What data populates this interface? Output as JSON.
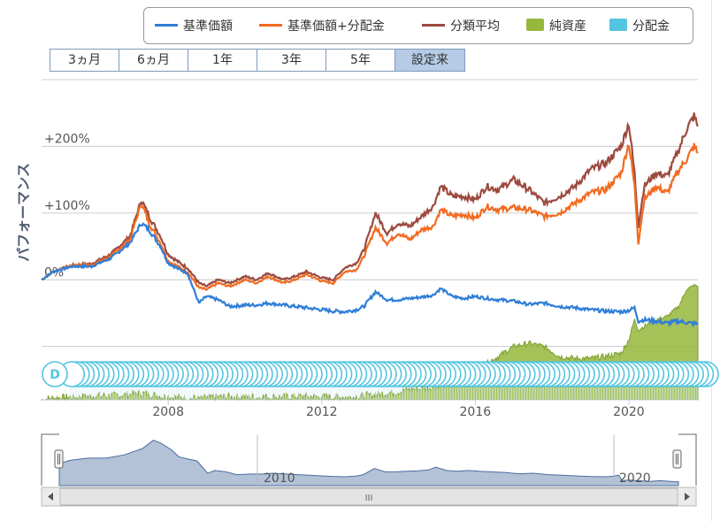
{
  "legend": [
    {
      "label": "基準価額",
      "color": "#2f7ed8",
      "kind": "line"
    },
    {
      "label": "基準価額+分配金",
      "color": "#f26b21",
      "kind": "line"
    },
    {
      "label": "分類平均",
      "color": "#9c4a3f",
      "kind": "line"
    },
    {
      "label": "純資産",
      "color": "#95b73c",
      "kind": "area"
    },
    {
      "label": "分配金",
      "color": "#52c5e0",
      "kind": "area"
    }
  ],
  "range_buttons": [
    "3ヵ月",
    "6ヵ月",
    "1年",
    "3年",
    "5年",
    "設定来"
  ],
  "active_range": "設定来",
  "flag_letter": "D",
  "navigator": {
    "x_ticks": [
      "2010",
      "2020"
    ],
    "scroll_grip": "III"
  },
  "colors": {
    "navigator_fill": "#b3c2d6",
    "navigator_line": "#4a6da0",
    "flag": "#52c5e0",
    "grid": "#cccccc"
  },
  "chart_data": {
    "type": "line",
    "title": "",
    "ylabel": "パフォーマンス",
    "y_ticks": [
      {
        "value": 200,
        "label": "+200%"
      },
      {
        "value": 100,
        "label": "+100%"
      },
      {
        "value": 0,
        "label": "0%"
      }
    ],
    "x_ticks": [
      "2008",
      "2012",
      "2016",
      "2020"
    ],
    "xlim": [
      2004.7,
      2021.8
    ],
    "ylim": [
      -180,
      300
    ],
    "x": [
      2004.7,
      2005.0,
      2005.5,
      2006.0,
      2006.5,
      2007.0,
      2007.3,
      2007.5,
      2007.8,
      2008.0,
      2008.3,
      2008.5,
      2008.8,
      2009.0,
      2009.3,
      2009.6,
      2010.0,
      2010.3,
      2010.6,
      2011.0,
      2011.3,
      2011.6,
      2012.0,
      2012.3,
      2012.6,
      2012.9,
      2013.1,
      2013.4,
      2013.7,
      2014.0,
      2014.3,
      2014.6,
      2014.9,
      2015.1,
      2015.4,
      2015.7,
      2016.0,
      2016.3,
      2016.6,
      2017.0,
      2017.4,
      2017.8,
      2018.2,
      2018.6,
      2019.0,
      2019.4,
      2019.8,
      2020.0,
      2020.15,
      2020.25,
      2020.4,
      2020.7,
      2021.0,
      2021.3,
      2021.5,
      2021.7,
      2021.8
    ],
    "series": [
      {
        "name": "基準価額",
        "values": [
          0,
          12,
          20,
          20,
          32,
          55,
          85,
          75,
          50,
          25,
          15,
          10,
          -35,
          -25,
          -30,
          -40,
          -38,
          -38,
          -35,
          -38,
          -40,
          -42,
          -45,
          -47,
          -48,
          -45,
          -40,
          -18,
          -30,
          -30,
          -28,
          -26,
          -23,
          -13,
          -25,
          -28,
          -25,
          -28,
          -30,
          -32,
          -37,
          -35,
          -40,
          -42,
          -45,
          -47,
          -48,
          -46,
          -42,
          -62,
          -60,
          -62,
          -65,
          -62,
          -64,
          -66,
          -66
        ]
      },
      {
        "name": "基準価額+分配金",
        "values": [
          0,
          12,
          22,
          22,
          35,
          60,
          115,
          85,
          55,
          28,
          18,
          12,
          -12,
          -15,
          -5,
          -10,
          0,
          -5,
          5,
          -5,
          0,
          8,
          -2,
          -5,
          12,
          15,
          35,
          78,
          55,
          70,
          60,
          75,
          80,
          105,
          95,
          98,
          92,
          110,
          105,
          108,
          105,
          95,
          100,
          115,
          130,
          135,
          160,
          205,
          140,
          55,
          120,
          140,
          130,
          165,
          180,
          200,
          190
        ]
      },
      {
        "name": "分類平均",
        "values": [
          0,
          12,
          22,
          24,
          38,
          65,
          120,
          95,
          65,
          38,
          25,
          18,
          -5,
          -10,
          0,
          -5,
          5,
          0,
          10,
          0,
          5,
          12,
          3,
          0,
          18,
          25,
          45,
          100,
          70,
          85,
          80,
          95,
          110,
          140,
          125,
          125,
          120,
          140,
          135,
          150,
          135,
          115,
          125,
          140,
          165,
          175,
          200,
          235,
          160,
          80,
          140,
          160,
          155,
          195,
          225,
          245,
          230
        ]
      },
      {
        "name": "純資産",
        "values": [
          -180,
          -178,
          -176,
          -175,
          -174,
          -172,
          -170,
          -172,
          -175,
          -176,
          -177,
          -178,
          -178,
          -177,
          -176,
          -176,
          -176,
          -176,
          -176,
          -176,
          -175,
          -175,
          -176,
          -176,
          -176,
          -176,
          -174,
          -172,
          -170,
          -168,
          -165,
          -163,
          -160,
          -158,
          -150,
          -140,
          -130,
          -125,
          -115,
          -100,
          -95,
          -100,
          -115,
          -118,
          -118,
          -115,
          -110,
          -90,
          -60,
          -75,
          -70,
          -60,
          -55,
          -40,
          -15,
          -8,
          -10
        ]
      }
    ]
  }
}
